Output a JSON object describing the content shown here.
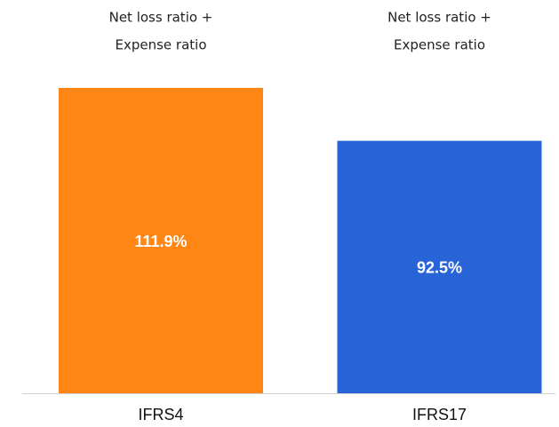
{
  "chart_data": {
    "type": "bar",
    "categories": [
      "IFRS4",
      "IFRS17"
    ],
    "values": [
      111.9,
      92.5
    ],
    "value_labels": [
      "111.9%",
      "92.5%"
    ],
    "colors": [
      "#ff8514",
      "#2864d8"
    ],
    "annotations": [
      [
        "Net loss ratio +",
        "Expense ratio"
      ],
      [
        "Net loss ratio +",
        "Expense ratio"
      ]
    ]
  }
}
